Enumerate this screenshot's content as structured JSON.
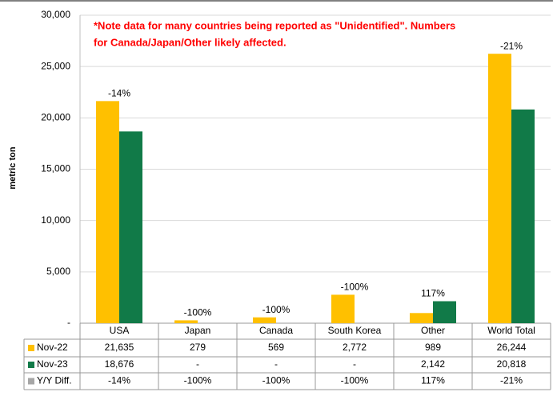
{
  "chart_data": {
    "type": "bar",
    "note": [
      "*Note data for many countries being reported as \"Unidentified\". Numbers",
      "for Canada/Japan/Other likely affected."
    ],
    "y_label": "metric ton",
    "categories": [
      "USA",
      "Japan",
      "Canada",
      "South Korea",
      "Other",
      "World Total"
    ],
    "series": [
      {
        "name": "Nov-22",
        "color": "#ffc000",
        "values": [
          21635,
          279,
          569,
          2772,
          989,
          26244
        ],
        "value_labels": [
          "21,635",
          "279",
          "569",
          "2,772",
          "989",
          "26,244"
        ]
      },
      {
        "name": "Nov-23",
        "color": "#117a48",
        "values": [
          18676,
          0,
          0,
          0,
          2142,
          20818
        ],
        "value_labels": [
          "18,676",
          "-",
          "-",
          "-",
          "2,142",
          "20,818"
        ]
      },
      {
        "name": "Y/Y Diff.",
        "color": "#a6a6a6",
        "values": [
          -14,
          -100,
          -100,
          -100,
          117,
          -21
        ],
        "value_labels": [
          "-14%",
          "-100%",
          "-100%",
          "-100%",
          "117%",
          "-21%"
        ]
      }
    ],
    "ylim": [
      0,
      30000
    ],
    "yticks": [
      {
        "value": 0,
        "label": "-"
      },
      {
        "value": 5000,
        "label": "5,000"
      },
      {
        "value": 10000,
        "label": "10,000"
      },
      {
        "value": 15000,
        "label": "15,000"
      },
      {
        "value": 20000,
        "label": "20,000"
      },
      {
        "value": 25000,
        "label": "25,000"
      },
      {
        "value": 30000,
        "label": "30,000"
      }
    ],
    "grid": true
  }
}
